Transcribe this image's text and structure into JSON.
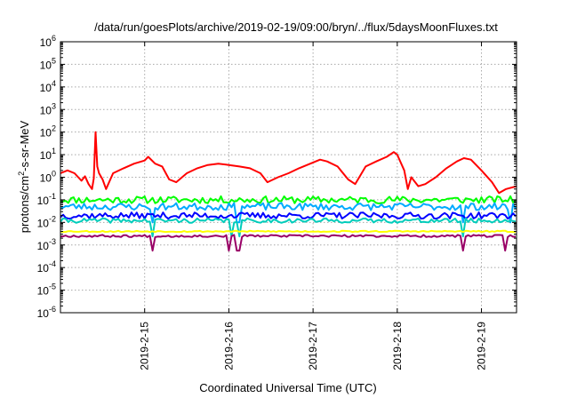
{
  "chart_data": {
    "type": "line",
    "title": "/data/run/goesPlots/archive/2019-02-19/09:00/bryn/../flux/5daysMoonFluxes.txt",
    "xlabel": "Coordinated Universal Time (UTC)",
    "ylabel": {
      "parts": [
        {
          "text": "protons/cm",
          "super": false
        },
        {
          "text": "2",
          "super": true
        },
        {
          "text": "-s-sr-MeV",
          "super": false
        }
      ]
    },
    "y_scale": "log",
    "ylim": [
      1e-06,
      1000000.0
    ],
    "y_ticks": [
      {
        "exp": -6,
        "label": "10",
        "sup": "-6"
      },
      {
        "exp": -5,
        "label": "10",
        "sup": "-5"
      },
      {
        "exp": -4,
        "label": "10",
        "sup": "-4"
      },
      {
        "exp": -3,
        "label": "10",
        "sup": "-3"
      },
      {
        "exp": -2,
        "label": "10",
        "sup": "-2"
      },
      {
        "exp": -1,
        "label": "10",
        "sup": "-1"
      },
      {
        "exp": 0,
        "label": "10",
        "sup": "0"
      },
      {
        "exp": 1,
        "label": "10",
        "sup": "1"
      },
      {
        "exp": 2,
        "label": "10",
        "sup": "2"
      },
      {
        "exp": 3,
        "label": "10",
        "sup": "3"
      },
      {
        "exp": 4,
        "label": "10",
        "sup": "4"
      },
      {
        "exp": 5,
        "label": "10",
        "sup": "5"
      },
      {
        "exp": 6,
        "label": "10",
        "sup": "6"
      }
    ],
    "xlim": [
      "2019-02-14T00:00",
      "2019-02-19T10:00"
    ],
    "x_ticks": [
      {
        "value": "2019-02-15T00:00",
        "label": "2019-2-15"
      },
      {
        "value": "2019-02-16T00:00",
        "label": "2019-2-16"
      },
      {
        "value": "2019-02-17T00:00",
        "label": "2019-2-17"
      },
      {
        "value": "2019-02-18T00:00",
        "label": "2019-2-18"
      },
      {
        "value": "2019-02-19T00:00",
        "label": "2019-2-19"
      }
    ],
    "grid": true,
    "legend": "none",
    "series": [
      {
        "color": "#ff0000",
        "kind": "smooth",
        "points": [
          [
            "2019-02-14T00:00",
            1.5
          ],
          [
            "2019-02-14T02:00",
            2.0
          ],
          [
            "2019-02-14T04:00",
            1.5
          ],
          [
            "2019-02-14T06:00",
            0.7
          ],
          [
            "2019-02-14T07:00",
            1.1
          ],
          [
            "2019-02-14T08:00",
            0.5
          ],
          [
            "2019-02-14T09:00",
            0.3
          ],
          [
            "2019-02-14T09:30",
            0.9
          ],
          [
            "2019-02-14T10:00",
            100
          ],
          [
            "2019-02-14T10:30",
            3.0
          ],
          [
            "2019-02-14T11:00",
            1.5
          ],
          [
            "2019-02-14T12:00",
            0.8
          ],
          [
            "2019-02-14T13:00",
            0.3
          ],
          [
            "2019-02-14T15:00",
            1.5
          ],
          [
            "2019-02-14T18:00",
            2.5
          ],
          [
            "2019-02-14T21:00",
            4.0
          ],
          [
            "2019-02-15T00:00",
            5.5
          ],
          [
            "2019-02-15T01:00",
            8.0
          ],
          [
            "2019-02-15T03:00",
            4.0
          ],
          [
            "2019-02-15T05:00",
            3.0
          ],
          [
            "2019-02-15T07:00",
            0.8
          ],
          [
            "2019-02-15T09:00",
            0.6
          ],
          [
            "2019-02-15T12:00",
            1.5
          ],
          [
            "2019-02-15T15:00",
            2.5
          ],
          [
            "2019-02-15T18:00",
            3.5
          ],
          [
            "2019-02-15T21:00",
            4.0
          ],
          [
            "2019-02-16T00:00",
            3.5
          ],
          [
            "2019-02-16T03:00",
            3.0
          ],
          [
            "2019-02-16T06:00",
            2.5
          ],
          [
            "2019-02-16T09:00",
            1.5
          ],
          [
            "2019-02-16T11:00",
            0.6
          ],
          [
            "2019-02-16T14:00",
            1.0
          ],
          [
            "2019-02-16T17:00",
            1.5
          ],
          [
            "2019-02-16T20:00",
            2.5
          ],
          [
            "2019-02-17T00:00",
            4.5
          ],
          [
            "2019-02-17T02:00",
            6.0
          ],
          [
            "2019-02-17T04:00",
            5.0
          ],
          [
            "2019-02-17T07:00",
            3.0
          ],
          [
            "2019-02-17T10:00",
            0.8
          ],
          [
            "2019-02-17T12:00",
            0.5
          ],
          [
            "2019-02-17T15:00",
            3.0
          ],
          [
            "2019-02-17T18:00",
            5.0
          ],
          [
            "2019-02-17T21:00",
            8.0
          ],
          [
            "2019-02-17T23:00",
            13
          ],
          [
            "2019-02-18T00:00",
            10
          ],
          [
            "2019-02-18T02:00",
            2.0
          ],
          [
            "2019-02-18T03:00",
            0.3
          ],
          [
            "2019-02-18T04:00",
            1.0
          ],
          [
            "2019-02-18T06:00",
            0.4
          ],
          [
            "2019-02-18T08:00",
            0.5
          ],
          [
            "2019-02-18T11:00",
            1.0
          ],
          [
            "2019-02-18T14:00",
            2.5
          ],
          [
            "2019-02-18T17:00",
            5.0
          ],
          [
            "2019-02-18T19:00",
            7.0
          ],
          [
            "2019-02-18T21:00",
            6.0
          ],
          [
            "2019-02-19T00:00",
            2.0
          ],
          [
            "2019-02-19T03:00",
            0.6
          ],
          [
            "2019-02-19T05:00",
            0.2
          ],
          [
            "2019-02-19T07:00",
            0.3
          ],
          [
            "2019-02-19T10:00",
            0.4
          ]
        ]
      },
      {
        "color": "#00ff00",
        "kind": "noisy",
        "base": 0.1,
        "amp": 0.16,
        "dips": [],
        "dipDepth": 0.5,
        "seed": 11
      },
      {
        "color": "#00aaff",
        "kind": "noisy",
        "base": 0.05,
        "amp": 0.16,
        "dips": [
          "2019-02-15T02:00",
          "2019-02-16T02:00",
          "2019-02-16T03:00",
          "2019-02-18T19:00",
          "2019-02-19T08:00"
        ],
        "dipDepth": 0.4,
        "seed": 23
      },
      {
        "color": "#0000ff",
        "kind": "noisy",
        "base": 0.02,
        "amp": 0.14,
        "dips": [],
        "dipDepth": 0.5,
        "seed": 37
      },
      {
        "color": "#00ccbb",
        "kind": "noisy",
        "base": 0.012,
        "amp": 0.1,
        "dips": [
          "2019-02-15T02:00",
          "2019-02-16T01:00",
          "2019-02-16T03:00",
          "2019-02-18T19:00"
        ],
        "dipDepth": 0.4,
        "seed": 41
      },
      {
        "color": "#ffff00",
        "kind": "noisy",
        "base": 0.004,
        "amp": 0.03,
        "dips": [],
        "dipDepth": 0.8,
        "seed": 53
      },
      {
        "color": "#990066",
        "kind": "noisy",
        "base": 0.0025,
        "amp": 0.05,
        "dips": [
          "2019-02-15T02:00",
          "2019-02-16T00:00",
          "2019-02-16T02:00",
          "2019-02-16T03:00",
          "2019-02-18T19:00",
          "2019-02-19T07:00"
        ],
        "dipDepth": 0.45,
        "seed": 67
      }
    ]
  }
}
